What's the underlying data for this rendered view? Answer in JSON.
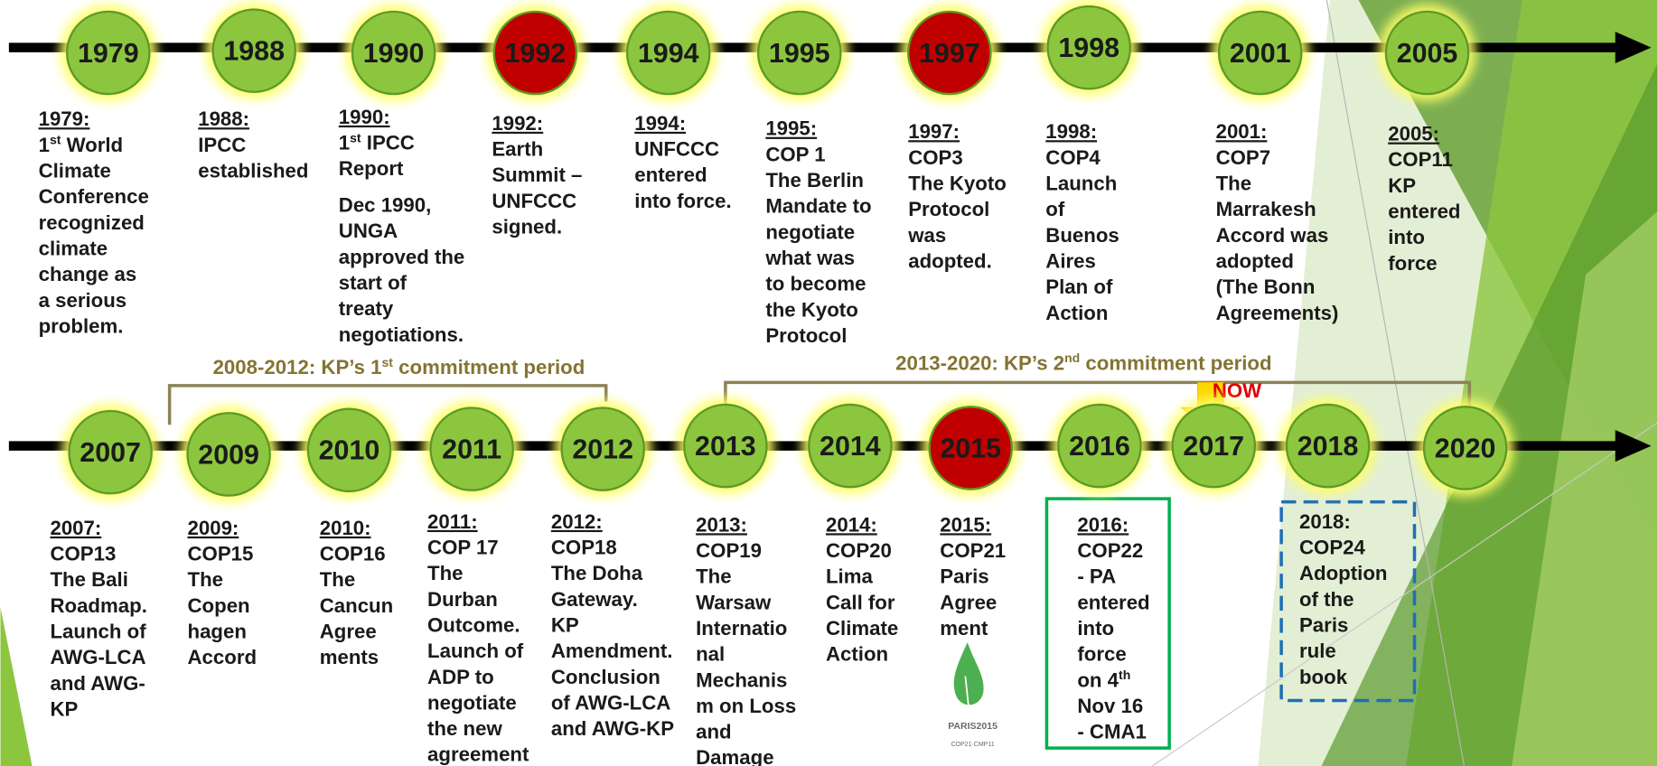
{
  "top": {
    "events": [
      {
        "year": "1979",
        "color": "#8cc63f",
        "heading": "1979:",
        "paragraphs": [
          [
            "1st World",
            "Climate",
            "Conference",
            "recognized",
            "climate",
            "change as",
            "a serious",
            "problem."
          ]
        ]
      },
      {
        "year": "1988",
        "color": "#8cc63f",
        "heading": "1988:",
        "paragraphs": [
          [
            "IPCC",
            "established"
          ]
        ]
      },
      {
        "year": "1990",
        "color": "#8cc63f",
        "heading": "1990:",
        "paragraphs": [
          [
            "1st IPCC",
            "Report"
          ],
          [
            "Dec 1990,",
            "UNGA",
            "approved the",
            "start of",
            "treaty",
            "negotiations."
          ]
        ]
      },
      {
        "year": "1992",
        "color": "#c00000",
        "heading": "1992:",
        "paragraphs": [
          [
            "Earth",
            "Summit –",
            "UNFCCC",
            "signed."
          ]
        ]
      },
      {
        "year": "1994",
        "color": "#8cc63f",
        "heading": "1994:",
        "paragraphs": [
          [
            "UNFCCC",
            "entered",
            "into force."
          ]
        ]
      },
      {
        "year": "1995",
        "color": "#8cc63f",
        "heading": "1995:",
        "paragraphs": [
          [
            "COP 1",
            "The Berlin",
            "Mandate to",
            "negotiate",
            "what was",
            "to become",
            "the Kyoto",
            "Protocol"
          ]
        ]
      },
      {
        "year": "1997",
        "color": "#c00000",
        "heading": "1997:",
        "paragraphs": [
          [
            "COP3",
            "The Kyoto",
            "Protocol",
            "was",
            "adopted."
          ]
        ]
      },
      {
        "year": "1998",
        "color": "#8cc63f",
        "heading": "1998:",
        "paragraphs": [
          [
            "COP4",
            "Launch",
            "of",
            "Buenos",
            "Aires",
            "Plan of",
            "Action"
          ]
        ]
      },
      {
        "year": "2001",
        "color": "#8cc63f",
        "heading": "2001:",
        "paragraphs": [
          [
            "COP7",
            "The",
            "Marrakesh",
            "Accord was",
            "adopted",
            "(The Bonn",
            "Agreements)"
          ]
        ]
      },
      {
        "year": "2005",
        "color": "#8cc63f",
        "heading": "2005:",
        "paragraphs": [
          [
            "COP11",
            "KP",
            "entered",
            "into",
            "force"
          ]
        ]
      }
    ]
  },
  "periods": [
    "2008-2012: KP’s 1st commitment period",
    "2013-2020: KP’s 2nd commitment period"
  ],
  "now": "NOW",
  "bottom": {
    "events": [
      {
        "year": "2007",
        "color": "#8cc63f",
        "heading": "2007:",
        "paragraphs": [
          [
            "COP13",
            "The Bali",
            "Roadmap.",
            "Launch of",
            "AWG-LCA",
            "and AWG-",
            "KP"
          ]
        ]
      },
      {
        "year": "2009",
        "color": "#8cc63f",
        "heading": "2009:",
        "paragraphs": [
          [
            "COP15",
            "The",
            "Copen",
            "hagen",
            "Accord"
          ]
        ]
      },
      {
        "year": "2010",
        "color": "#8cc63f",
        "heading": "2010:",
        "paragraphs": [
          [
            "COP16",
            "The",
            "Cancun",
            "Agree",
            "ments"
          ]
        ]
      },
      {
        "year": "2011",
        "color": "#8cc63f",
        "heading": "2011:",
        "paragraphs": [
          [
            "COP 17",
            "The",
            "Durban",
            "Outcome.",
            "Launch of",
            "ADP to",
            "negotiate",
            "the new",
            "agreement"
          ]
        ]
      },
      {
        "year": "2012",
        "color": "#8cc63f",
        "heading": "2012:",
        "paragraphs": [
          [
            "COP18",
            "The Doha",
            "Gateway.",
            "KP",
            "Amendment.",
            "Conclusion",
            "of AWG-LCA",
            "and AWG-KP"
          ]
        ]
      },
      {
        "year": "2013",
        "color": "#8cc63f",
        "heading": "2013:",
        "paragraphs": [
          [
            "COP19",
            "The",
            "Warsaw",
            "Internatio",
            "nal",
            "Mechanis",
            "m on Loss",
            "and",
            "Damage"
          ]
        ]
      },
      {
        "year": "2014",
        "color": "#8cc63f",
        "heading": "2014:",
        "paragraphs": [
          [
            "COP20",
            "Lima",
            "Call for",
            "Climate",
            "Action"
          ]
        ]
      },
      {
        "year": "2015",
        "color": "#c00000",
        "heading": "2015:",
        "paragraphs": [
          [
            "COP21",
            "Paris",
            "Agree",
            "ment"
          ]
        ]
      },
      {
        "year": "2016",
        "color": "#8cc63f",
        "heading": "2016:",
        "paragraphs": [
          [
            "COP22",
            "- PA",
            "entered",
            "into",
            "force",
            "on 4th",
            "Nov 16",
            "- CMA1"
          ]
        ]
      },
      {
        "year": "2017",
        "color": "#8cc63f"
      },
      {
        "year": "2018",
        "color": "#8cc63f",
        "heading": "2018:",
        "paragraphs": [
          [
            "COP24",
            "Adoption",
            "of the",
            "Paris",
            "rule",
            "book"
          ]
        ]
      },
      {
        "year": "2020",
        "color": "#8cc63f"
      }
    ]
  },
  "logo": {
    "name": "PARIS2015",
    "sub": "COP21·CMP11"
  }
}
